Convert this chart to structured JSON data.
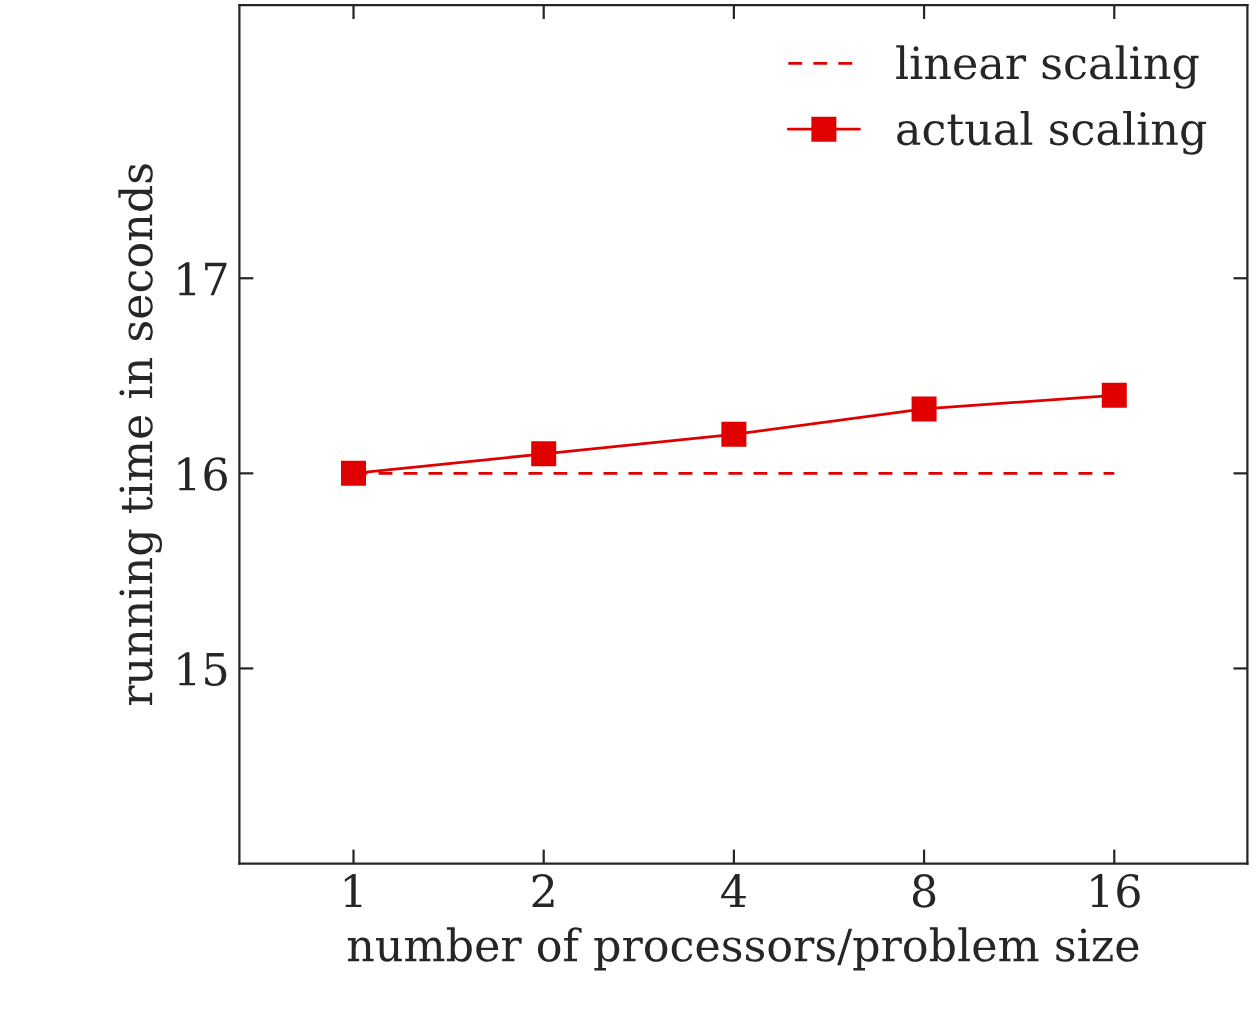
{
  "chart_data": {
    "type": "line",
    "xlabel": "number of processors/problem size",
    "ylabel": "running time in seconds",
    "categories": [
      "1",
      "2",
      "4",
      "8",
      "16"
    ],
    "series": [
      {
        "name": "linear scaling",
        "color": "#e00000",
        "values": [
          16,
          16,
          16,
          16,
          16
        ],
        "line_style": "dashed",
        "marker": "none"
      },
      {
        "name": "actual scaling",
        "color": "#e00000",
        "values": [
          16.0,
          16.1,
          16.2,
          16.33,
          16.4
        ],
        "line_style": "solid",
        "marker": "square"
      }
    ],
    "ylim": [
      14.0,
      18.4
    ],
    "yticks": [
      15,
      16,
      17
    ],
    "grid": false,
    "legend": "top right"
  }
}
